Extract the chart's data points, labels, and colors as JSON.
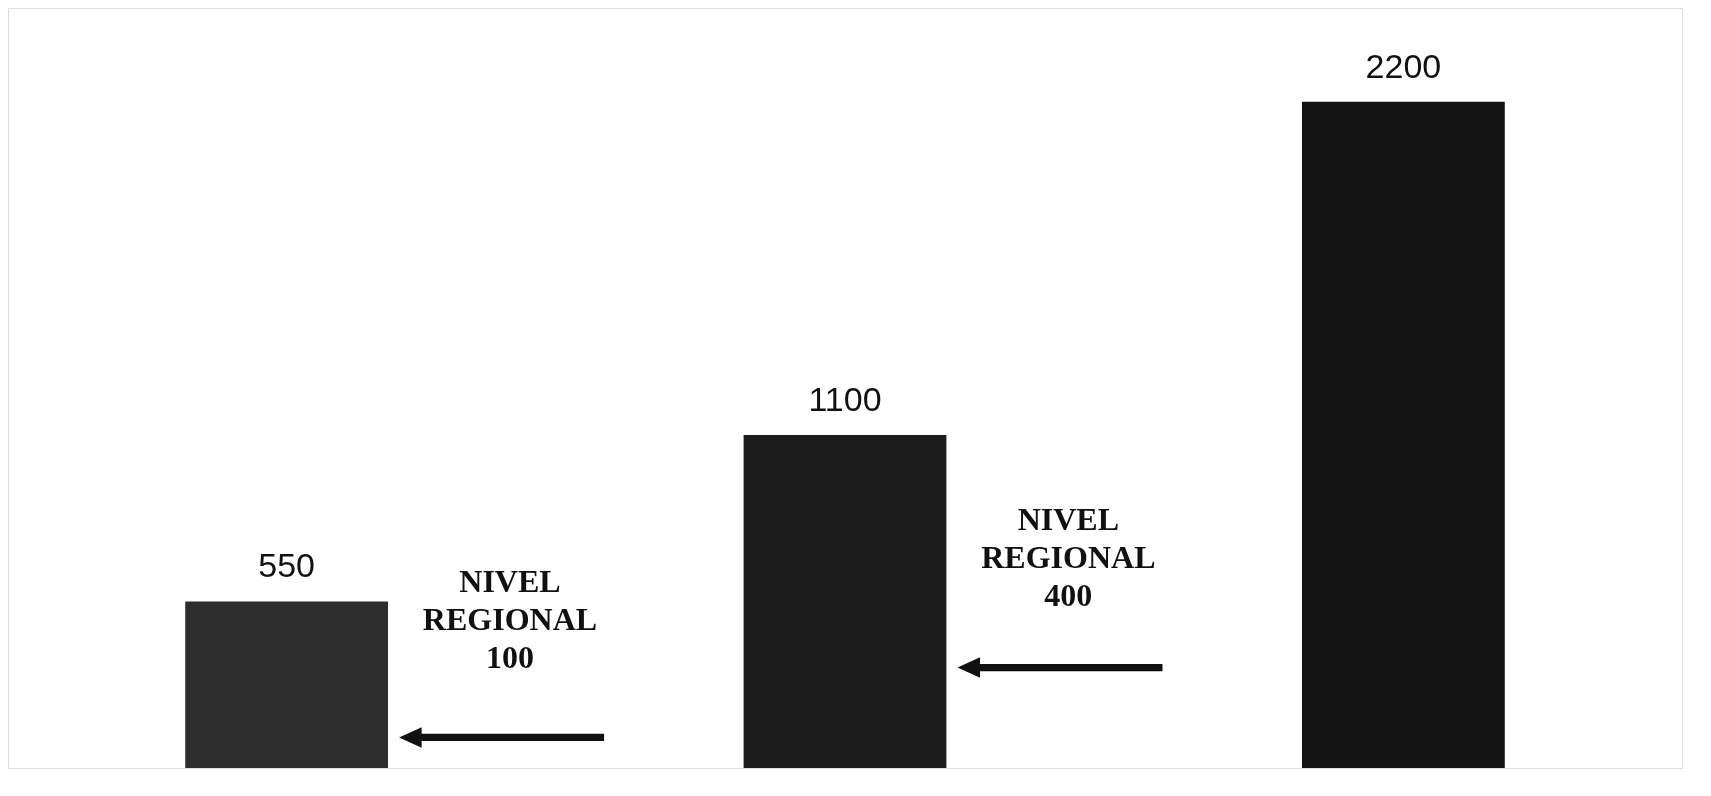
{
  "chart_data": {
    "type": "bar",
    "categories": [
      null,
      null,
      null
    ],
    "values": [
      550,
      1100,
      2200
    ],
    "colors": [
      "#2e2e2e",
      "#1c1c1c",
      "#141414"
    ],
    "ylim": [
      0,
      2510
    ],
    "data_labels": true,
    "annotations": [
      "NIVEL\nREGIONAL\n100",
      "NIVEL\nREGIONAL\n400"
    ]
  }
}
